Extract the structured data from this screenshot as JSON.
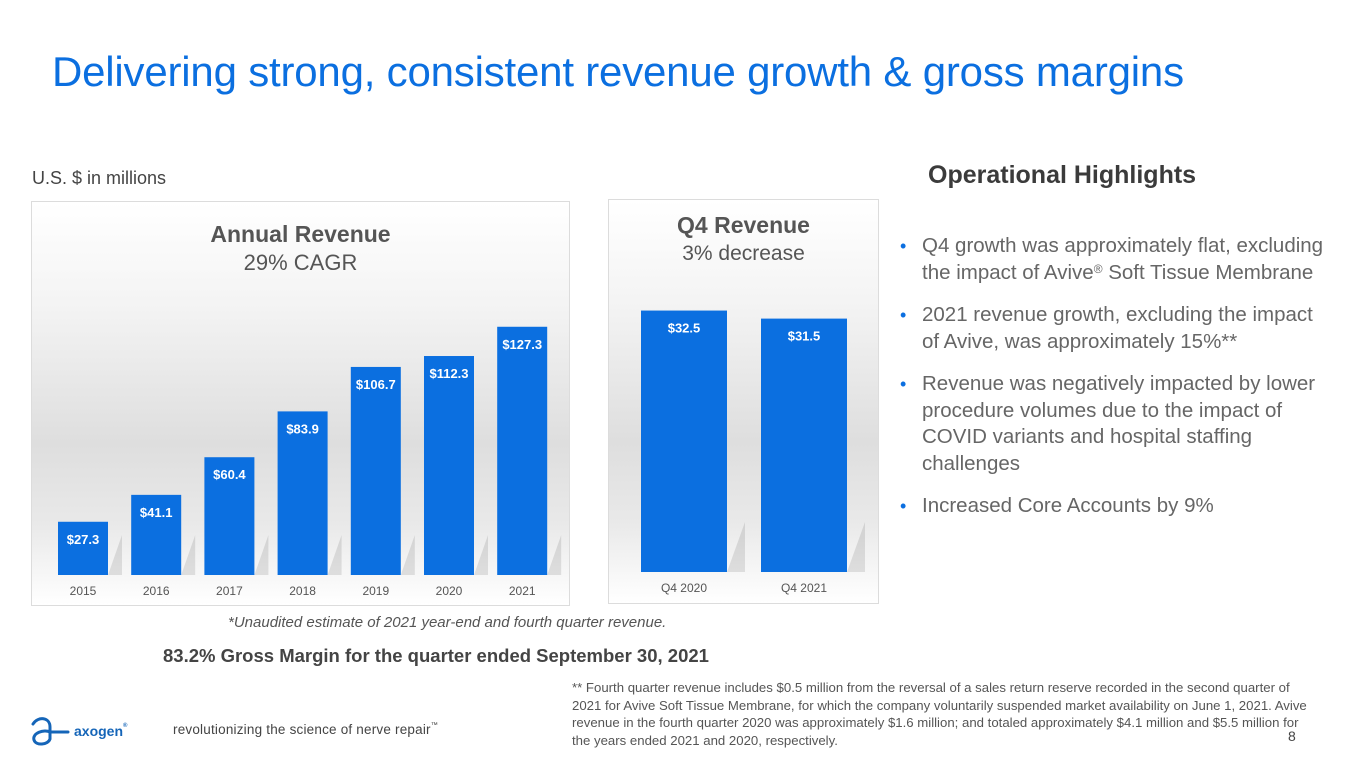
{
  "slide": {
    "title": "Delivering strong, consistent revenue growth & gross margins",
    "units_label": "U.S. $ in millions",
    "page_number": "8"
  },
  "chart_data": [
    {
      "type": "bar",
      "title": "Annual Revenue",
      "subtitle": "29% CAGR",
      "categories": [
        "2015",
        "2016",
        "2017",
        "2018",
        "2019",
        "2020",
        "2021"
      ],
      "values": [
        27.3,
        41.1,
        60.4,
        83.9,
        106.7,
        112.3,
        127.3
      ],
      "labels": [
        "$27.3",
        "$41.1",
        "$60.4",
        "$83.9",
        "$106.7",
        "$112.3",
        "$127.3"
      ],
      "xlabel": "",
      "ylabel": "",
      "ylim": [
        0,
        140
      ],
      "grid": false,
      "bar_color": "#0b6fe0",
      "label_color": "#ffffff"
    },
    {
      "type": "bar",
      "title": "Q4 Revenue",
      "subtitle": "3% decrease",
      "categories": [
        "Q4 2020",
        "Q4 2021"
      ],
      "values": [
        32.5,
        31.5
      ],
      "labels": [
        "$32.5",
        "$31.5"
      ],
      "xlabel": "",
      "ylabel": "",
      "ylim": [
        0,
        45
      ],
      "grid": false,
      "bar_color": "#0b6fe0",
      "label_color": "#ffffff"
    }
  ],
  "highlights": {
    "title": "Operational Highlights",
    "items": [
      {
        "text_before": "Q4 growth was approximately flat, excluding the impact of Avive",
        "superscript": "®",
        "text_after": " Soft Tissue Membrane"
      },
      {
        "text_before": "2021 revenue growth, excluding the impact of Avive, was approximately 15%**",
        "superscript": "",
        "text_after": ""
      },
      {
        "text_before": "Revenue was negatively impacted by lower procedure volumes due to the impact of COVID variants and hospital staffing challenges",
        "superscript": "",
        "text_after": ""
      },
      {
        "text_before": "Increased Core Accounts by 9%",
        "superscript": "",
        "text_after": ""
      }
    ],
    "bullet": "•"
  },
  "footnotes": {
    "unaudited": "*Unaudited estimate of 2021 year-end and fourth quarter revenue.",
    "gross_margin": "83.2% Gross Margin for the quarter ended September 30, 2021",
    "avive_note": "** Fourth quarter revenue includes $0.5 million from the reversal of a sales return reserve recorded in the second quarter of 2021 for Avive Soft Tissue Membrane, for which the company voluntarily suspended market availability on June 1, 2021. Avive revenue in the fourth quarter 2020 was approximately $1.6 million; and totaled approximately $4.1 million and $5.5 million for the years ended 2021 and 2020, respectively."
  },
  "brand": {
    "name": "axogen",
    "registered": "®",
    "tagline": "revolutionizing the science of nerve repair",
    "tagline_mark": "™",
    "color": "#1565b8"
  }
}
